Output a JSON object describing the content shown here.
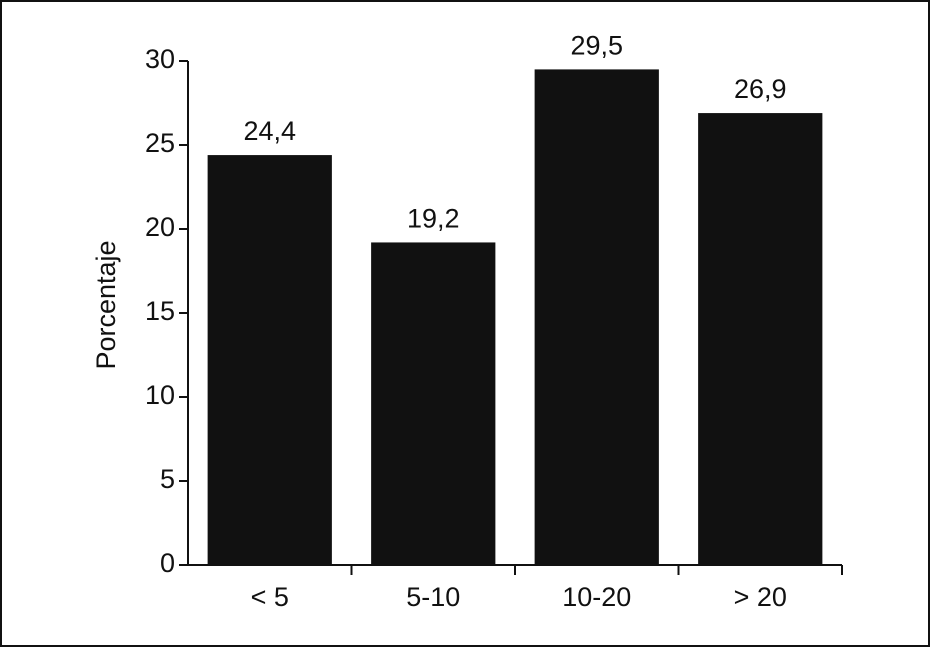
{
  "chart_data": {
    "type": "bar",
    "y_label": "Porcentaje",
    "categories": [
      "< 5",
      "5-10",
      "10-20",
      "> 20"
    ],
    "values": [
      24.4,
      19.2,
      29.5,
      26.9
    ],
    "value_labels": [
      "24,4",
      "19,2",
      "29,5",
      "26,9"
    ],
    "color": "#111111",
    "ylim": [
      0,
      30
    ],
    "yticks": [
      0,
      5,
      10,
      15,
      20,
      25,
      30
    ],
    "grid": false
  }
}
